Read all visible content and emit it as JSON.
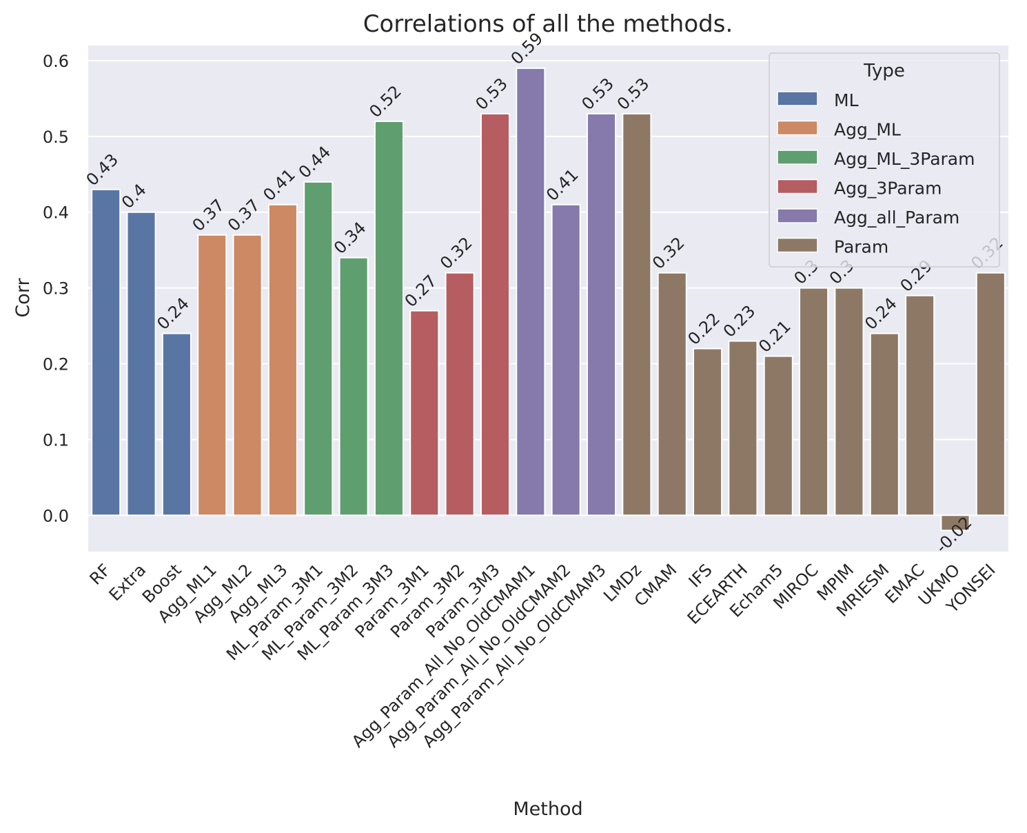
{
  "chart_data": {
    "type": "bar",
    "title": "Correlations of all the methods.",
    "xlabel": "Method",
    "ylabel": "Corr",
    "ylim": [
      -0.048,
      0.62
    ],
    "yticks": [
      0.0,
      0.1,
      0.2,
      0.3,
      0.4,
      0.5,
      0.6
    ],
    "ytick_labels": [
      "0.0",
      "0.1",
      "0.2",
      "0.3",
      "0.4",
      "0.5",
      "0.6"
    ],
    "grid": true,
    "legend": {
      "title": "Type",
      "placement": "top-right",
      "entries": [
        {
          "name": "ML",
          "color": "#5975a4"
        },
        {
          "name": "Agg_ML",
          "color": "#cc8963"
        },
        {
          "name": "Agg_ML_3Param",
          "color": "#5f9e6e"
        },
        {
          "name": "Agg_3Param",
          "color": "#b55d60"
        },
        {
          "name": "Agg_all_Param",
          "color": "#857aab"
        },
        {
          "name": "Param",
          "color": "#8d7866"
        }
      ]
    },
    "bars": [
      {
        "category": "RF",
        "value": 0.43,
        "label": "0.43",
        "type": "ML"
      },
      {
        "category": "Extra",
        "value": 0.4,
        "label": "0.4",
        "type": "ML"
      },
      {
        "category": "Boost",
        "value": 0.24,
        "label": "0.24",
        "type": "ML"
      },
      {
        "category": "Agg_ML1",
        "value": 0.37,
        "label": "0.37",
        "type": "Agg_ML"
      },
      {
        "category": "Agg_ML2",
        "value": 0.37,
        "label": "0.37",
        "type": "Agg_ML"
      },
      {
        "category": "Agg_ML3",
        "value": 0.41,
        "label": "0.41",
        "type": "Agg_ML"
      },
      {
        "category": "ML_Param_3M1",
        "value": 0.44,
        "label": "0.44",
        "type": "Agg_ML_3Param"
      },
      {
        "category": "ML_Param_3M2",
        "value": 0.34,
        "label": "0.34",
        "type": "Agg_ML_3Param"
      },
      {
        "category": "ML_Param_3M3",
        "value": 0.52,
        "label": "0.52",
        "type": "Agg_ML_3Param"
      },
      {
        "category": "Param_3M1",
        "value": 0.27,
        "label": "0.27",
        "type": "Agg_3Param"
      },
      {
        "category": "Param_3M2",
        "value": 0.32,
        "label": "0.32",
        "type": "Agg_3Param"
      },
      {
        "category": "Param_3M3",
        "value": 0.53,
        "label": "0.53",
        "type": "Agg_3Param"
      },
      {
        "category": "Agg_Param_All_No_OldCMAM1",
        "value": 0.59,
        "label": "0.59",
        "type": "Agg_all_Param"
      },
      {
        "category": "Agg_Param_All_No_OldCMAM2",
        "value": 0.41,
        "label": "0.41",
        "type": "Agg_all_Param"
      },
      {
        "category": "Agg_Param_All_No_OldCMAM3",
        "value": 0.53,
        "label": "0.53",
        "type": "Agg_all_Param"
      },
      {
        "category": "LMDz",
        "value": 0.53,
        "label": "0.53",
        "type": "Param"
      },
      {
        "category": "CMAM",
        "value": 0.32,
        "label": "0.32",
        "type": "Param"
      },
      {
        "category": "IFS",
        "value": 0.22,
        "label": "0.22",
        "type": "Param"
      },
      {
        "category": "ECEARTH",
        "value": 0.23,
        "label": "0.23",
        "type": "Param"
      },
      {
        "category": "Echam5",
        "value": 0.21,
        "label": "0.21",
        "type": "Param"
      },
      {
        "category": "MIROC",
        "value": 0.3,
        "label": "0.3",
        "type": "Param"
      },
      {
        "category": "MPIM",
        "value": 0.3,
        "label": "0.3",
        "type": "Param"
      },
      {
        "category": "MRIESM",
        "value": 0.24,
        "label": "0.24",
        "type": "Param"
      },
      {
        "category": "EMAC",
        "value": 0.29,
        "label": "0.29",
        "type": "Param"
      },
      {
        "category": "UKMO",
        "value": -0.02,
        "label": "-0.02",
        "type": "Param"
      },
      {
        "category": "YONSEI",
        "value": 0.32,
        "label": "0.32",
        "type": "Param"
      }
    ],
    "colors": {
      "plot_background": "#eaeaf2",
      "grid": "#ffffff",
      "bar_edge": "#ffffff",
      "text": "#262626"
    }
  }
}
